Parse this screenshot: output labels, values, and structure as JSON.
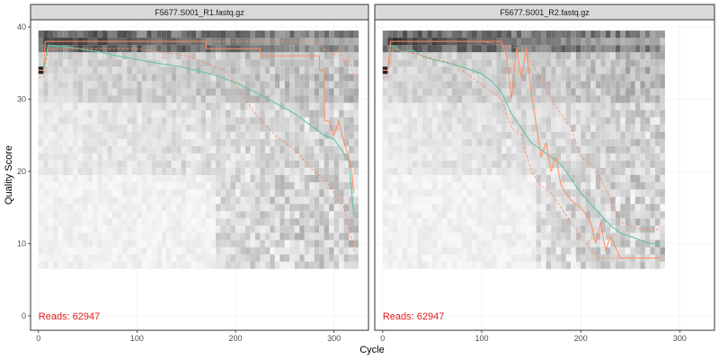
{
  "chart_data": [
    {
      "type": "line",
      "panel_title": "F5677.S001_R1.fastq.gz",
      "reads_label": "Reads:  62947",
      "xlabel": "Cycle",
      "ylabel": "Quality Score",
      "xlim": [
        -8,
        335
      ],
      "ylim": [
        -2,
        41
      ],
      "x_ticks": [
        0,
        100,
        200,
        300
      ],
      "y_ticks": [
        0,
        10,
        20,
        30,
        40
      ],
      "max_cycle": 320,
      "colors": {
        "mean": "#66c2a5",
        "median": "#fc8d62",
        "quartile": "#fc8d62",
        "reads": "#e41a1c"
      },
      "series": [
        {
          "key": "mean",
          "x": [
            0,
            5,
            10,
            20,
            30,
            40,
            50,
            60,
            80,
            100,
            120,
            140,
            160,
            180,
            200,
            220,
            240,
            260,
            280,
            290,
            300,
            310,
            315,
            320
          ],
          "y": [
            34,
            34,
            37.5,
            37.3,
            37.2,
            37.0,
            36.8,
            36.6,
            36.0,
            35.5,
            35.0,
            34.6,
            34.0,
            33.3,
            32.3,
            31.0,
            29.5,
            28.0,
            26.0,
            25.0,
            24.5,
            22.5,
            21.5,
            14
          ]
        },
        {
          "key": "median",
          "x": [
            0,
            5,
            7,
            170,
            170.5,
            225,
            225.5,
            285,
            285.5,
            290,
            290.5,
            295,
            300,
            305,
            310,
            315,
            318,
            320
          ],
          "y": [
            34,
            34,
            38,
            38,
            37,
            37,
            36,
            36,
            34,
            34,
            27,
            27,
            25,
            27,
            24,
            22,
            20,
            17
          ]
        },
        {
          "key": "q25",
          "x": [
            0,
            5,
            10,
            50,
            100,
            150,
            190,
            200,
            210,
            220,
            240,
            260,
            280,
            290,
            300,
            310,
            320
          ],
          "y": [
            33,
            33,
            37,
            37,
            37,
            36,
            34,
            32,
            30,
            28,
            25,
            23,
            20,
            19,
            17,
            15,
            9
          ]
        },
        {
          "key": "q75",
          "x": [
            0,
            5,
            7,
            280,
            290,
            300,
            305,
            310,
            315,
            320
          ],
          "y": [
            34,
            34,
            38,
            38,
            37,
            36,
            37,
            35,
            36,
            33
          ]
        }
      ]
    },
    {
      "type": "line",
      "panel_title": "F5677.S001_R2.fastq.gz",
      "reads_label": "Reads:  62947",
      "xlabel": "Cycle",
      "ylabel": "Quality Score",
      "xlim": [
        -8,
        335
      ],
      "ylim": [
        -2,
        41
      ],
      "x_ticks": [
        0,
        100,
        200,
        300
      ],
      "y_ticks": [
        0,
        10,
        20,
        30,
        40
      ],
      "max_cycle": 280,
      "colors": {
        "mean": "#66c2a5",
        "median": "#fc8d62",
        "quartile": "#fc8d62",
        "reads": "#e41a1c"
      },
      "series": [
        {
          "key": "mean",
          "x": [
            0,
            5,
            8,
            15,
            20,
            30,
            40,
            50,
            60,
            80,
            100,
            110,
            120,
            130,
            140,
            150,
            160,
            170,
            180,
            190,
            200,
            210,
            220,
            230,
            240,
            250,
            260,
            270,
            280
          ],
          "y": [
            34,
            34,
            37.5,
            37,
            36.5,
            36.8,
            36,
            35.5,
            35.2,
            34.5,
            33.5,
            32.5,
            31,
            28,
            26,
            24,
            23,
            22,
            21,
            19,
            17,
            15.5,
            14,
            12.5,
            11.5,
            11,
            10.5,
            10,
            10
          ]
        },
        {
          "key": "median",
          "x": [
            0,
            5,
            8,
            120,
            125,
            130,
            135,
            140,
            145,
            150,
            160,
            165,
            170,
            175,
            180,
            190,
            200,
            210,
            215,
            220,
            225,
            230,
            240,
            260,
            280
          ],
          "y": [
            34,
            34,
            38,
            38,
            36,
            30,
            37,
            33,
            37,
            31,
            22,
            24,
            20,
            22,
            18,
            16,
            15,
            13,
            10,
            13,
            9,
            11,
            8,
            8,
            8
          ]
        },
        {
          "key": "q25",
          "x": [
            0,
            5,
            10,
            40,
            70,
            100,
            120,
            130,
            140,
            150,
            160,
            170,
            180,
            190,
            200,
            210,
            220,
            230,
            240,
            260,
            280
          ],
          "y": [
            33,
            33,
            37,
            36,
            35,
            32,
            30,
            26,
            25,
            20,
            18,
            17,
            15,
            13,
            11,
            9,
            8,
            8,
            8,
            8,
            8
          ]
        },
        {
          "key": "q75",
          "x": [
            0,
            5,
            8,
            100,
            120,
            140,
            150,
            160,
            170,
            180,
            190,
            200,
            210,
            220,
            230,
            240,
            260,
            280
          ],
          "y": [
            34,
            34,
            38,
            38,
            37.5,
            37,
            35,
            33,
            30,
            28,
            26,
            22,
            21,
            19,
            16,
            13,
            12,
            12
          ]
        }
      ]
    }
  ]
}
